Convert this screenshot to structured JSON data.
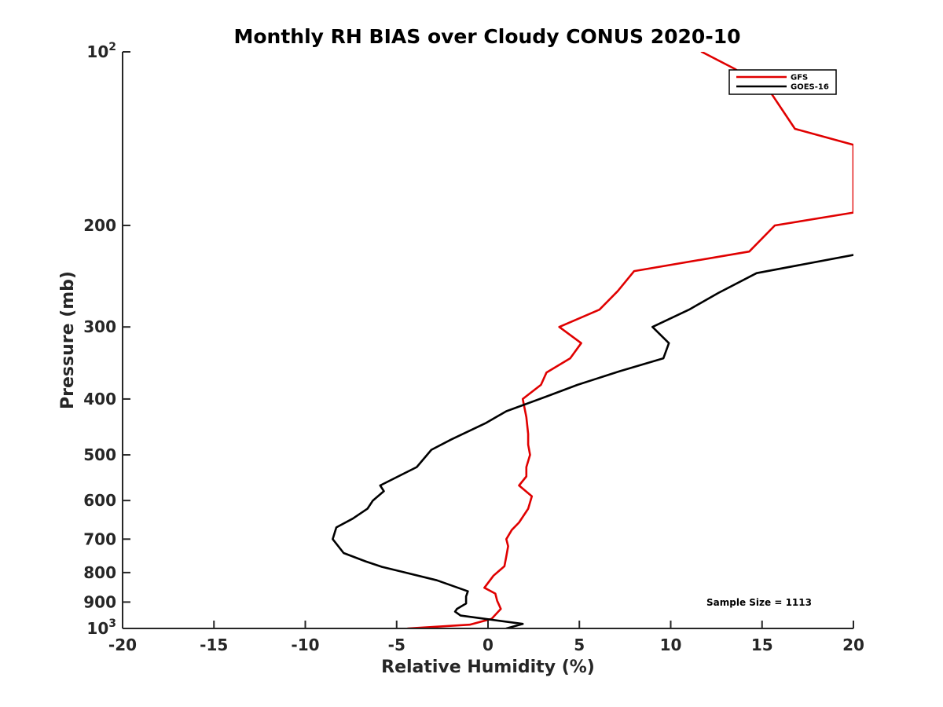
{
  "chart_data": {
    "type": "line",
    "title": "Monthly RH BIAS over Cloudy CONUS  2020-10",
    "xlabel": "Relative Humidity (%)",
    "ylabel": "Pressure (mb)",
    "xlim": [
      -20,
      20
    ],
    "ylim": [
      1000,
      100
    ],
    "y_scale": "log",
    "x_ticks": [
      "-20",
      "-15",
      "-10",
      "-5",
      "0",
      "5",
      "10",
      "15",
      "20"
    ],
    "y_ticks": [
      {
        "value": 100,
        "label": "10",
        "sup": "2"
      },
      {
        "value": 200,
        "label": "200",
        "sup": ""
      },
      {
        "value": 300,
        "label": "300",
        "sup": ""
      },
      {
        "value": 400,
        "label": "400",
        "sup": ""
      },
      {
        "value": 500,
        "label": "500",
        "sup": ""
      },
      {
        "value": 600,
        "label": "600",
        "sup": ""
      },
      {
        "value": 700,
        "label": "700",
        "sup": ""
      },
      {
        "value": 800,
        "label": "800",
        "sup": ""
      },
      {
        "value": 900,
        "label": "900",
        "sup": ""
      },
      {
        "value": 1000,
        "label": "10",
        "sup": "3"
      }
    ],
    "grid": false,
    "legend_position": "top-right",
    "annotation": "Sample Size = 1113",
    "series": [
      {
        "name": "GFS",
        "color": "#e00000",
        "points": [
          {
            "x": -4.4,
            "p": 1000
          },
          {
            "x": -1.0,
            "p": 985
          },
          {
            "x": 0.2,
            "p": 962
          },
          {
            "x": 0.7,
            "p": 925
          },
          {
            "x": 0.5,
            "p": 895
          },
          {
            "x": 0.4,
            "p": 870
          },
          {
            "x": -0.2,
            "p": 850
          },
          {
            "x": 0.3,
            "p": 810
          },
          {
            "x": 0.9,
            "p": 780
          },
          {
            "x": 1.0,
            "p": 750
          },
          {
            "x": 1.1,
            "p": 720
          },
          {
            "x": 1.0,
            "p": 700
          },
          {
            "x": 1.3,
            "p": 675
          },
          {
            "x": 1.7,
            "p": 655
          },
          {
            "x": 2.2,
            "p": 620
          },
          {
            "x": 2.4,
            "p": 590
          },
          {
            "x": 1.7,
            "p": 565
          },
          {
            "x": 2.1,
            "p": 545
          },
          {
            "x": 2.1,
            "p": 525
          },
          {
            "x": 2.3,
            "p": 500
          },
          {
            "x": 2.2,
            "p": 480
          },
          {
            "x": 2.2,
            "p": 460
          },
          {
            "x": 2.1,
            "p": 430
          },
          {
            "x": 1.9,
            "p": 400
          },
          {
            "x": 2.9,
            "p": 378
          },
          {
            "x": 3.2,
            "p": 360
          },
          {
            "x": 4.5,
            "p": 340
          },
          {
            "x": 5.1,
            "p": 320
          },
          {
            "x": 3.9,
            "p": 300
          },
          {
            "x": 6.1,
            "p": 280
          },
          {
            "x": 7.1,
            "p": 260
          },
          {
            "x": 8.0,
            "p": 240
          },
          {
            "x": 14.3,
            "p": 222
          },
          {
            "x": 15.7,
            "p": 200
          },
          {
            "x": 20.0,
            "p": 190
          },
          {
            "x": 20.0,
            "p": 145
          },
          {
            "x": 16.8,
            "p": 136
          },
          {
            "x": 15.5,
            "p": 118
          },
          {
            "x": 13.5,
            "p": 107
          },
          {
            "x": 11.7,
            "p": 100
          }
        ]
      },
      {
        "name": "GOES-16",
        "color": "#000000",
        "points": [
          {
            "x": 1.0,
            "p": 1000
          },
          {
            "x": 1.9,
            "p": 982
          },
          {
            "x": -1.5,
            "p": 950
          },
          {
            "x": -1.8,
            "p": 935
          },
          {
            "x": -1.7,
            "p": 925
          },
          {
            "x": -1.2,
            "p": 905
          },
          {
            "x": -1.2,
            "p": 880
          },
          {
            "x": -1.1,
            "p": 862
          },
          {
            "x": -2.8,
            "p": 825
          },
          {
            "x": -5.8,
            "p": 782
          },
          {
            "x": -6.7,
            "p": 765
          },
          {
            "x": -7.9,
            "p": 740
          },
          {
            "x": -8.5,
            "p": 700
          },
          {
            "x": -8.3,
            "p": 668
          },
          {
            "x": -7.4,
            "p": 645
          },
          {
            "x": -6.6,
            "p": 620
          },
          {
            "x": -6.3,
            "p": 600
          },
          {
            "x": -5.7,
            "p": 578
          },
          {
            "x": -5.9,
            "p": 565
          },
          {
            "x": -3.9,
            "p": 525
          },
          {
            "x": -3.1,
            "p": 490
          },
          {
            "x": -2.0,
            "p": 470
          },
          {
            "x": -0.1,
            "p": 440
          },
          {
            "x": 1.0,
            "p": 420
          },
          {
            "x": 3.3,
            "p": 395
          },
          {
            "x": 4.9,
            "p": 378
          },
          {
            "x": 7.2,
            "p": 358
          },
          {
            "x": 9.6,
            "p": 340
          },
          {
            "x": 9.9,
            "p": 320
          },
          {
            "x": 9.0,
            "p": 300
          },
          {
            "x": 11.0,
            "p": 280
          },
          {
            "x": 12.6,
            "p": 262
          },
          {
            "x": 14.7,
            "p": 242
          },
          {
            "x": 20.0,
            "p": 225
          }
        ]
      }
    ]
  }
}
